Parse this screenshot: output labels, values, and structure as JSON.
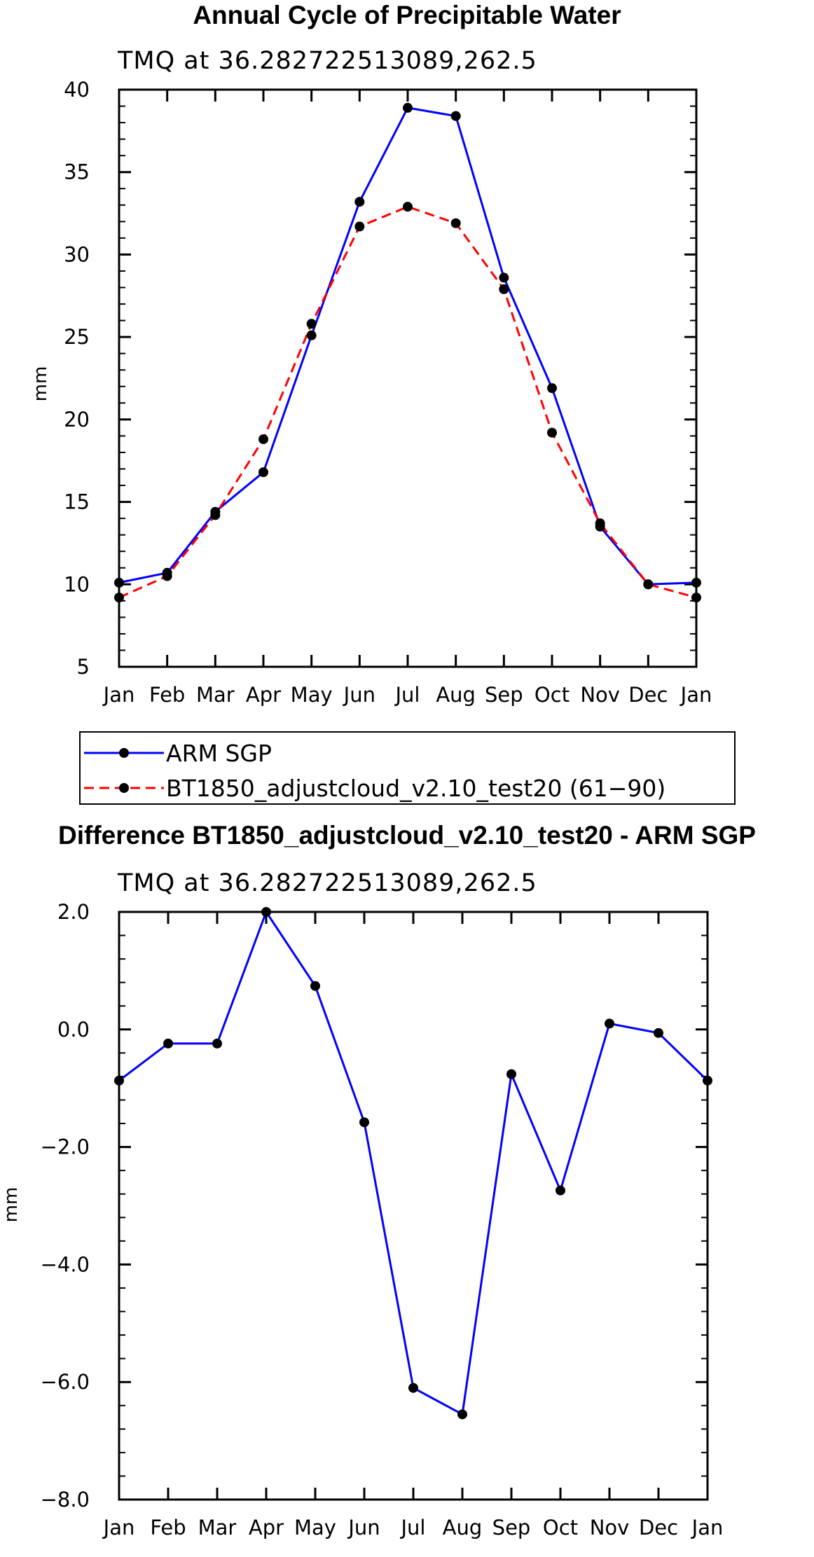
{
  "colors": {
    "arm": "#0000ff",
    "model": "#ff0000",
    "marker": "#000000"
  },
  "chart_data": [
    {
      "type": "line",
      "title": "Annual Cycle of Precipitable Water",
      "subtitle": "TMQ at 36.282722513089,262.5",
      "xlabel": "",
      "ylabel": "mm",
      "categories": [
        "Jan",
        "Feb",
        "Mar",
        "Apr",
        "May",
        "Jun",
        "Jul",
        "Aug",
        "Sep",
        "Oct",
        "Nov",
        "Dec",
        "Jan"
      ],
      "ylim": [
        5,
        40
      ],
      "y_ticks": [
        5,
        10,
        15,
        20,
        25,
        30,
        35,
        40
      ],
      "y_tick_labels": [
        "5",
        "10",
        "15",
        "20",
        "25",
        "30",
        "35",
        "40"
      ],
      "y_minor_step": 1,
      "series": [
        {
          "name": "ARM SGP",
          "style": "solid",
          "color": "#0000ff",
          "values": [
            10.1,
            10.7,
            14.4,
            16.8,
            25.1,
            33.2,
            38.9,
            38.4,
            28.6,
            21.9,
            13.5,
            10.0,
            10.1
          ]
        },
        {
          "name": "BT1850_adjustcloud_v2.10_test20 (61-90)",
          "style": "dashed",
          "color": "#ff0000",
          "values": [
            9.2,
            10.5,
            14.2,
            18.8,
            25.8,
            31.7,
            32.9,
            31.9,
            27.9,
            19.2,
            13.7,
            10.0,
            9.2
          ]
        }
      ],
      "legend": {
        "position": "bottom",
        "entries": [
          "ARM SGP",
          "BT1850_adjustcloud_v2.10_test20 (61−90)"
        ]
      }
    },
    {
      "type": "line",
      "title": "Difference BT1850_adjustcloud_v2.10_test20 - ARM SGP",
      "subtitle": "TMQ at 36.282722513089,262.5",
      "xlabel": "",
      "ylabel": "mm",
      "categories": [
        "Jan",
        "Feb",
        "Mar",
        "Apr",
        "May",
        "Jun",
        "Jul",
        "Aug",
        "Sep",
        "Oct",
        "Nov",
        "Dec",
        "Jan"
      ],
      "ylim": [
        -8,
        2
      ],
      "y_ticks": [
        -8,
        -6,
        -4,
        -2,
        0,
        2
      ],
      "y_tick_labels": [
        "−8.0",
        "−6.0",
        "−4.0",
        "−2.0",
        "0.0",
        "2.0"
      ],
      "y_minor_step": 0.4,
      "series": [
        {
          "name": "Difference",
          "style": "solid",
          "color": "#0000ff",
          "values": [
            -0.87,
            -0.24,
            -0.24,
            2.0,
            0.74,
            -1.58,
            -6.1,
            -6.55,
            -0.76,
            -2.74,
            0.1,
            -0.06,
            -0.87
          ]
        }
      ]
    }
  ]
}
